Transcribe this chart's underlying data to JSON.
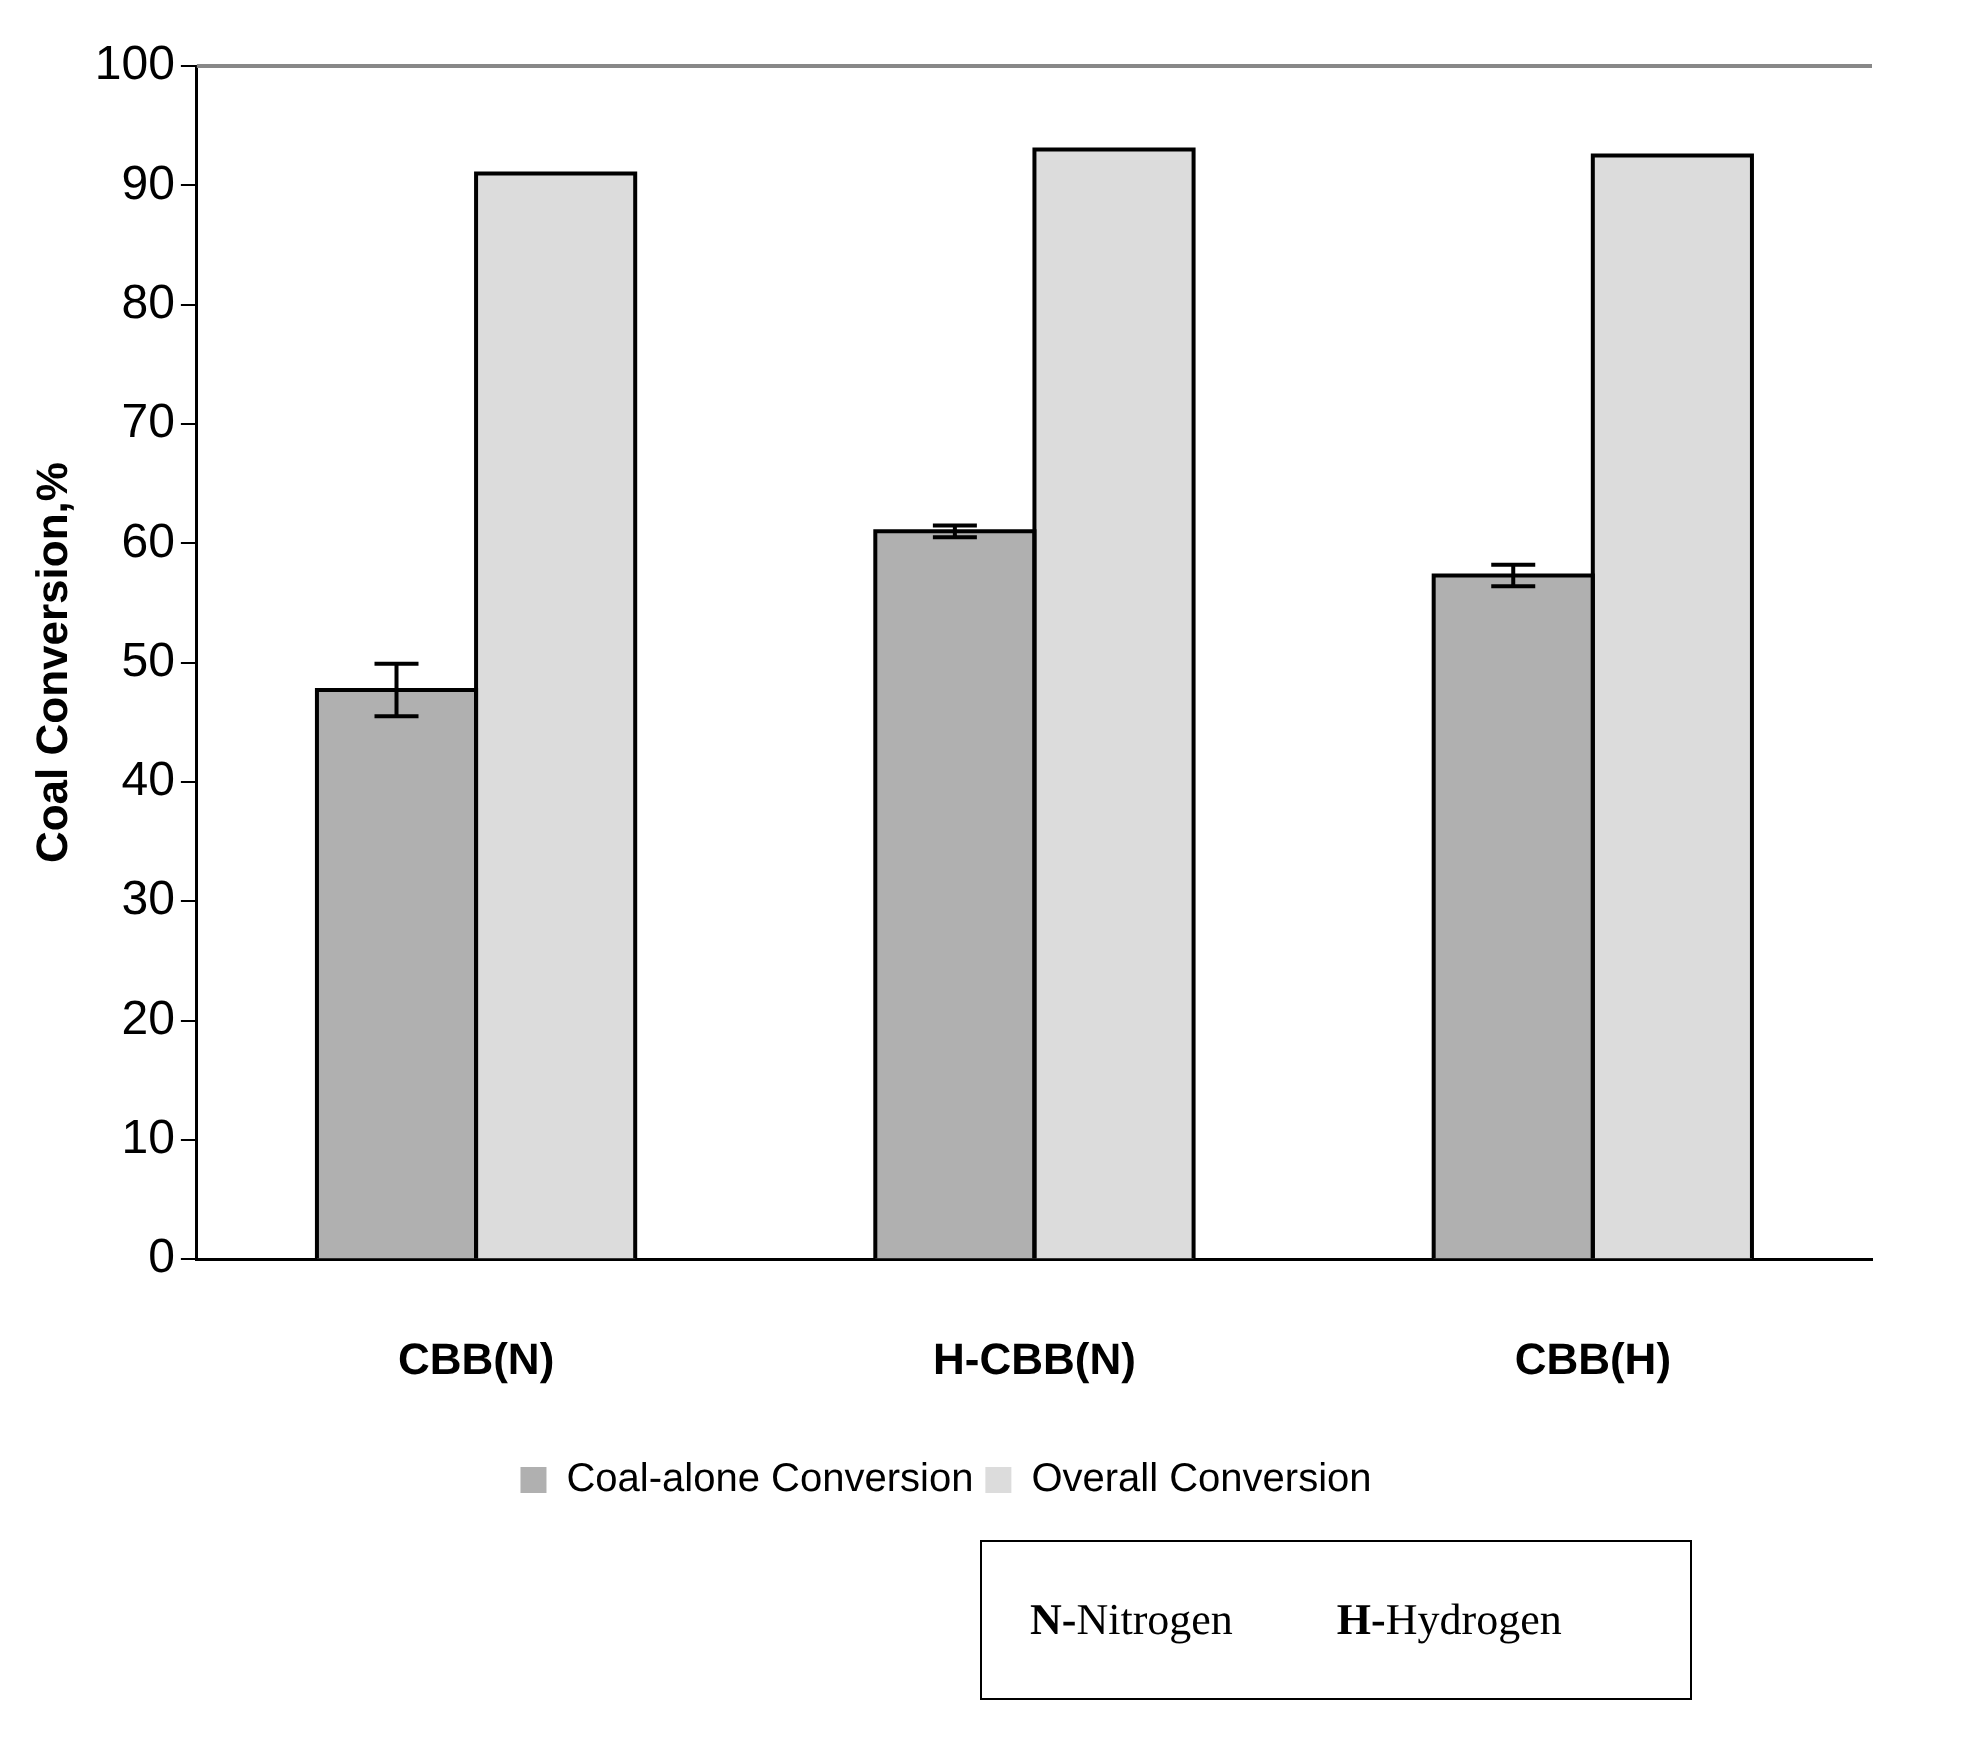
{
  "chart_data": {
    "type": "bar",
    "ylabel": "Coal Conversion,%",
    "categories": [
      "CBB(N)",
      "H-CBB(N)",
      "CBB(H)"
    ],
    "series": [
      {
        "name": "Coal-alone Conversion",
        "color": "#b0b0b0",
        "values": [
          47.7,
          61,
          57.3
        ],
        "errors": [
          2.2,
          0.5,
          0.9
        ]
      },
      {
        "name": "Overall Conversion",
        "color": "#dcdcdc",
        "values": [
          91,
          93,
          92.5
        ]
      }
    ],
    "ylim": [
      0,
      100
    ],
    "yticks": [
      0,
      10,
      20,
      30,
      40,
      50,
      60,
      70,
      80,
      90,
      100
    ],
    "grid": false,
    "legend": "bottom",
    "annotations": [
      "N-Nitrogen",
      "H-Hydrogen"
    ]
  }
}
